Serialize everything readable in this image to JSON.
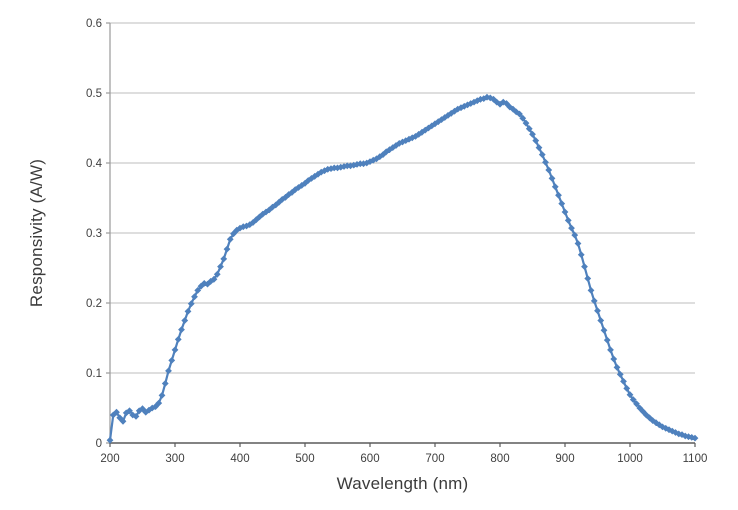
{
  "colors": {
    "series_blue": "#4f81bd",
    "gridline": "#bdbdbd",
    "y_axis": "#9a9a9a",
    "x_axis": "#5a5a5a",
    "tick_text": "#3f3f3f",
    "title_text": "#3b3b3b",
    "background": "#ffffff"
  },
  "chart_data": {
    "type": "line",
    "title": "",
    "xlabel": "Wavelength (nm)",
    "ylabel": "Responsivity (A/W)",
    "xlim": [
      200,
      1100
    ],
    "ylim": [
      0,
      0.6
    ],
    "xticks": [
      200,
      300,
      400,
      500,
      600,
      700,
      800,
      900,
      1000,
      1100
    ],
    "yticks": [
      0,
      0.1,
      0.2,
      0.3,
      0.4,
      0.5,
      0.6
    ],
    "ytick_labels": [
      "0",
      "0.1",
      "0.2",
      "0.3",
      "0.4",
      "0.5",
      "0.6"
    ],
    "grid": "horizontal-only",
    "legend": "none",
    "marker": "diamond",
    "series": [
      {
        "name": "Responsivity",
        "color": "#4f81bd",
        "x": [
          200,
          205,
          210,
          215,
          220,
          225,
          230,
          235,
          240,
          245,
          250,
          255,
          260,
          265,
          270,
          275,
          280,
          285,
          290,
          295,
          300,
          305,
          310,
          315,
          320,
          325,
          330,
          335,
          340,
          345,
          350,
          355,
          360,
          365,
          370,
          375,
          380,
          385,
          390,
          395,
          400,
          405,
          410,
          415,
          420,
          425,
          430,
          435,
          440,
          445,
          450,
          455,
          460,
          465,
          470,
          475,
          480,
          485,
          490,
          495,
          500,
          505,
          510,
          515,
          520,
          525,
          530,
          535,
          540,
          545,
          550,
          555,
          560,
          565,
          570,
          575,
          580,
          585,
          590,
          595,
          600,
          605,
          610,
          615,
          620,
          625,
          630,
          635,
          640,
          645,
          650,
          655,
          660,
          665,
          670,
          675,
          680,
          685,
          690,
          695,
          700,
          705,
          710,
          715,
          720,
          725,
          730,
          735,
          740,
          745,
          750,
          755,
          760,
          765,
          770,
          775,
          780,
          785,
          790,
          795,
          800,
          805,
          810,
          815,
          820,
          825,
          830,
          835,
          840,
          845,
          850,
          855,
          860,
          865,
          870,
          875,
          880,
          885,
          890,
          895,
          900,
          905,
          910,
          915,
          920,
          925,
          930,
          935,
          940,
          945,
          950,
          955,
          960,
          965,
          970,
          975,
          980,
          985,
          990,
          995,
          1000,
          1005,
          1010,
          1015,
          1020,
          1025,
          1030,
          1035,
          1040,
          1045,
          1050,
          1055,
          1060,
          1065,
          1070,
          1075,
          1080,
          1085,
          1090,
          1095,
          1100
        ],
        "y": [
          0.004,
          0.04,
          0.044,
          0.036,
          0.031,
          0.043,
          0.046,
          0.04,
          0.038,
          0.046,
          0.049,
          0.044,
          0.047,
          0.05,
          0.052,
          0.057,
          0.068,
          0.085,
          0.103,
          0.118,
          0.133,
          0.148,
          0.162,
          0.175,
          0.188,
          0.199,
          0.209,
          0.218,
          0.224,
          0.228,
          0.227,
          0.231,
          0.234,
          0.241,
          0.252,
          0.263,
          0.277,
          0.291,
          0.299,
          0.304,
          0.307,
          0.309,
          0.31,
          0.312,
          0.315,
          0.319,
          0.323,
          0.327,
          0.33,
          0.333,
          0.337,
          0.34,
          0.344,
          0.348,
          0.351,
          0.355,
          0.358,
          0.362,
          0.365,
          0.368,
          0.371,
          0.375,
          0.378,
          0.381,
          0.384,
          0.387,
          0.389,
          0.391,
          0.392,
          0.393,
          0.393,
          0.394,
          0.395,
          0.396,
          0.396,
          0.397,
          0.398,
          0.399,
          0.399,
          0.4,
          0.402,
          0.404,
          0.406,
          0.409,
          0.412,
          0.416,
          0.419,
          0.422,
          0.425,
          0.428,
          0.43,
          0.432,
          0.434,
          0.436,
          0.438,
          0.441,
          0.444,
          0.447,
          0.45,
          0.453,
          0.456,
          0.459,
          0.462,
          0.465,
          0.468,
          0.471,
          0.474,
          0.477,
          0.479,
          0.481,
          0.483,
          0.485,
          0.487,
          0.489,
          0.491,
          0.492,
          0.494,
          0.493,
          0.491,
          0.487,
          0.484,
          0.487,
          0.485,
          0.48,
          0.477,
          0.473,
          0.47,
          0.464,
          0.457,
          0.449,
          0.441,
          0.432,
          0.422,
          0.412,
          0.401,
          0.39,
          0.378,
          0.366,
          0.354,
          0.342,
          0.33,
          0.318,
          0.307,
          0.297,
          0.285,
          0.269,
          0.252,
          0.235,
          0.218,
          0.203,
          0.189,
          0.175,
          0.161,
          0.147,
          0.133,
          0.12,
          0.108,
          0.098,
          0.088,
          0.078,
          0.069,
          0.062,
          0.056,
          0.05,
          0.045,
          0.04,
          0.036,
          0.032,
          0.029,
          0.026,
          0.023,
          0.021,
          0.019,
          0.017,
          0.015,
          0.013,
          0.012,
          0.01,
          0.009,
          0.008,
          0.007
        ]
      }
    ]
  }
}
